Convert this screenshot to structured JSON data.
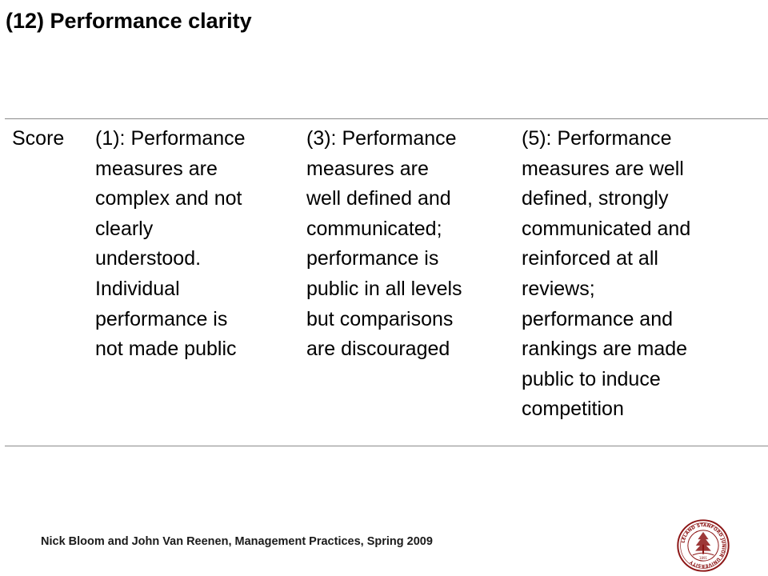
{
  "slide": {
    "title": "(12) Performance clarity"
  },
  "table": {
    "score_label": "Score",
    "levels": [
      {
        "text": "(1): Performance\nmeasures are\ncomplex and not\nclearly\nunderstood.\nIndividual\nperformance is\nnot made public"
      },
      {
        "text": "(3): Performance\nmeasures are\nwell defined and\ncommunicated;\nperformance is\npublic in all levels\nbut comparisons\nare discouraged"
      },
      {
        "text": "(5): Performance\nmeasures are well\ndefined, strongly\ncommunicated and\nreinforced at all\nreviews;\nperformance and\nrankings are made\npublic to induce\ncompetition"
      }
    ]
  },
  "footer": {
    "text": "Nick Bloom and John Van Reenen, Management Practices, Spring 2009"
  },
  "seal": {
    "name": "stanford-seal-icon",
    "ring_text": "LELAND STANFORD JUNIOR UNIVERSITY",
    "year": "1891",
    "color": "#8c1515"
  }
}
